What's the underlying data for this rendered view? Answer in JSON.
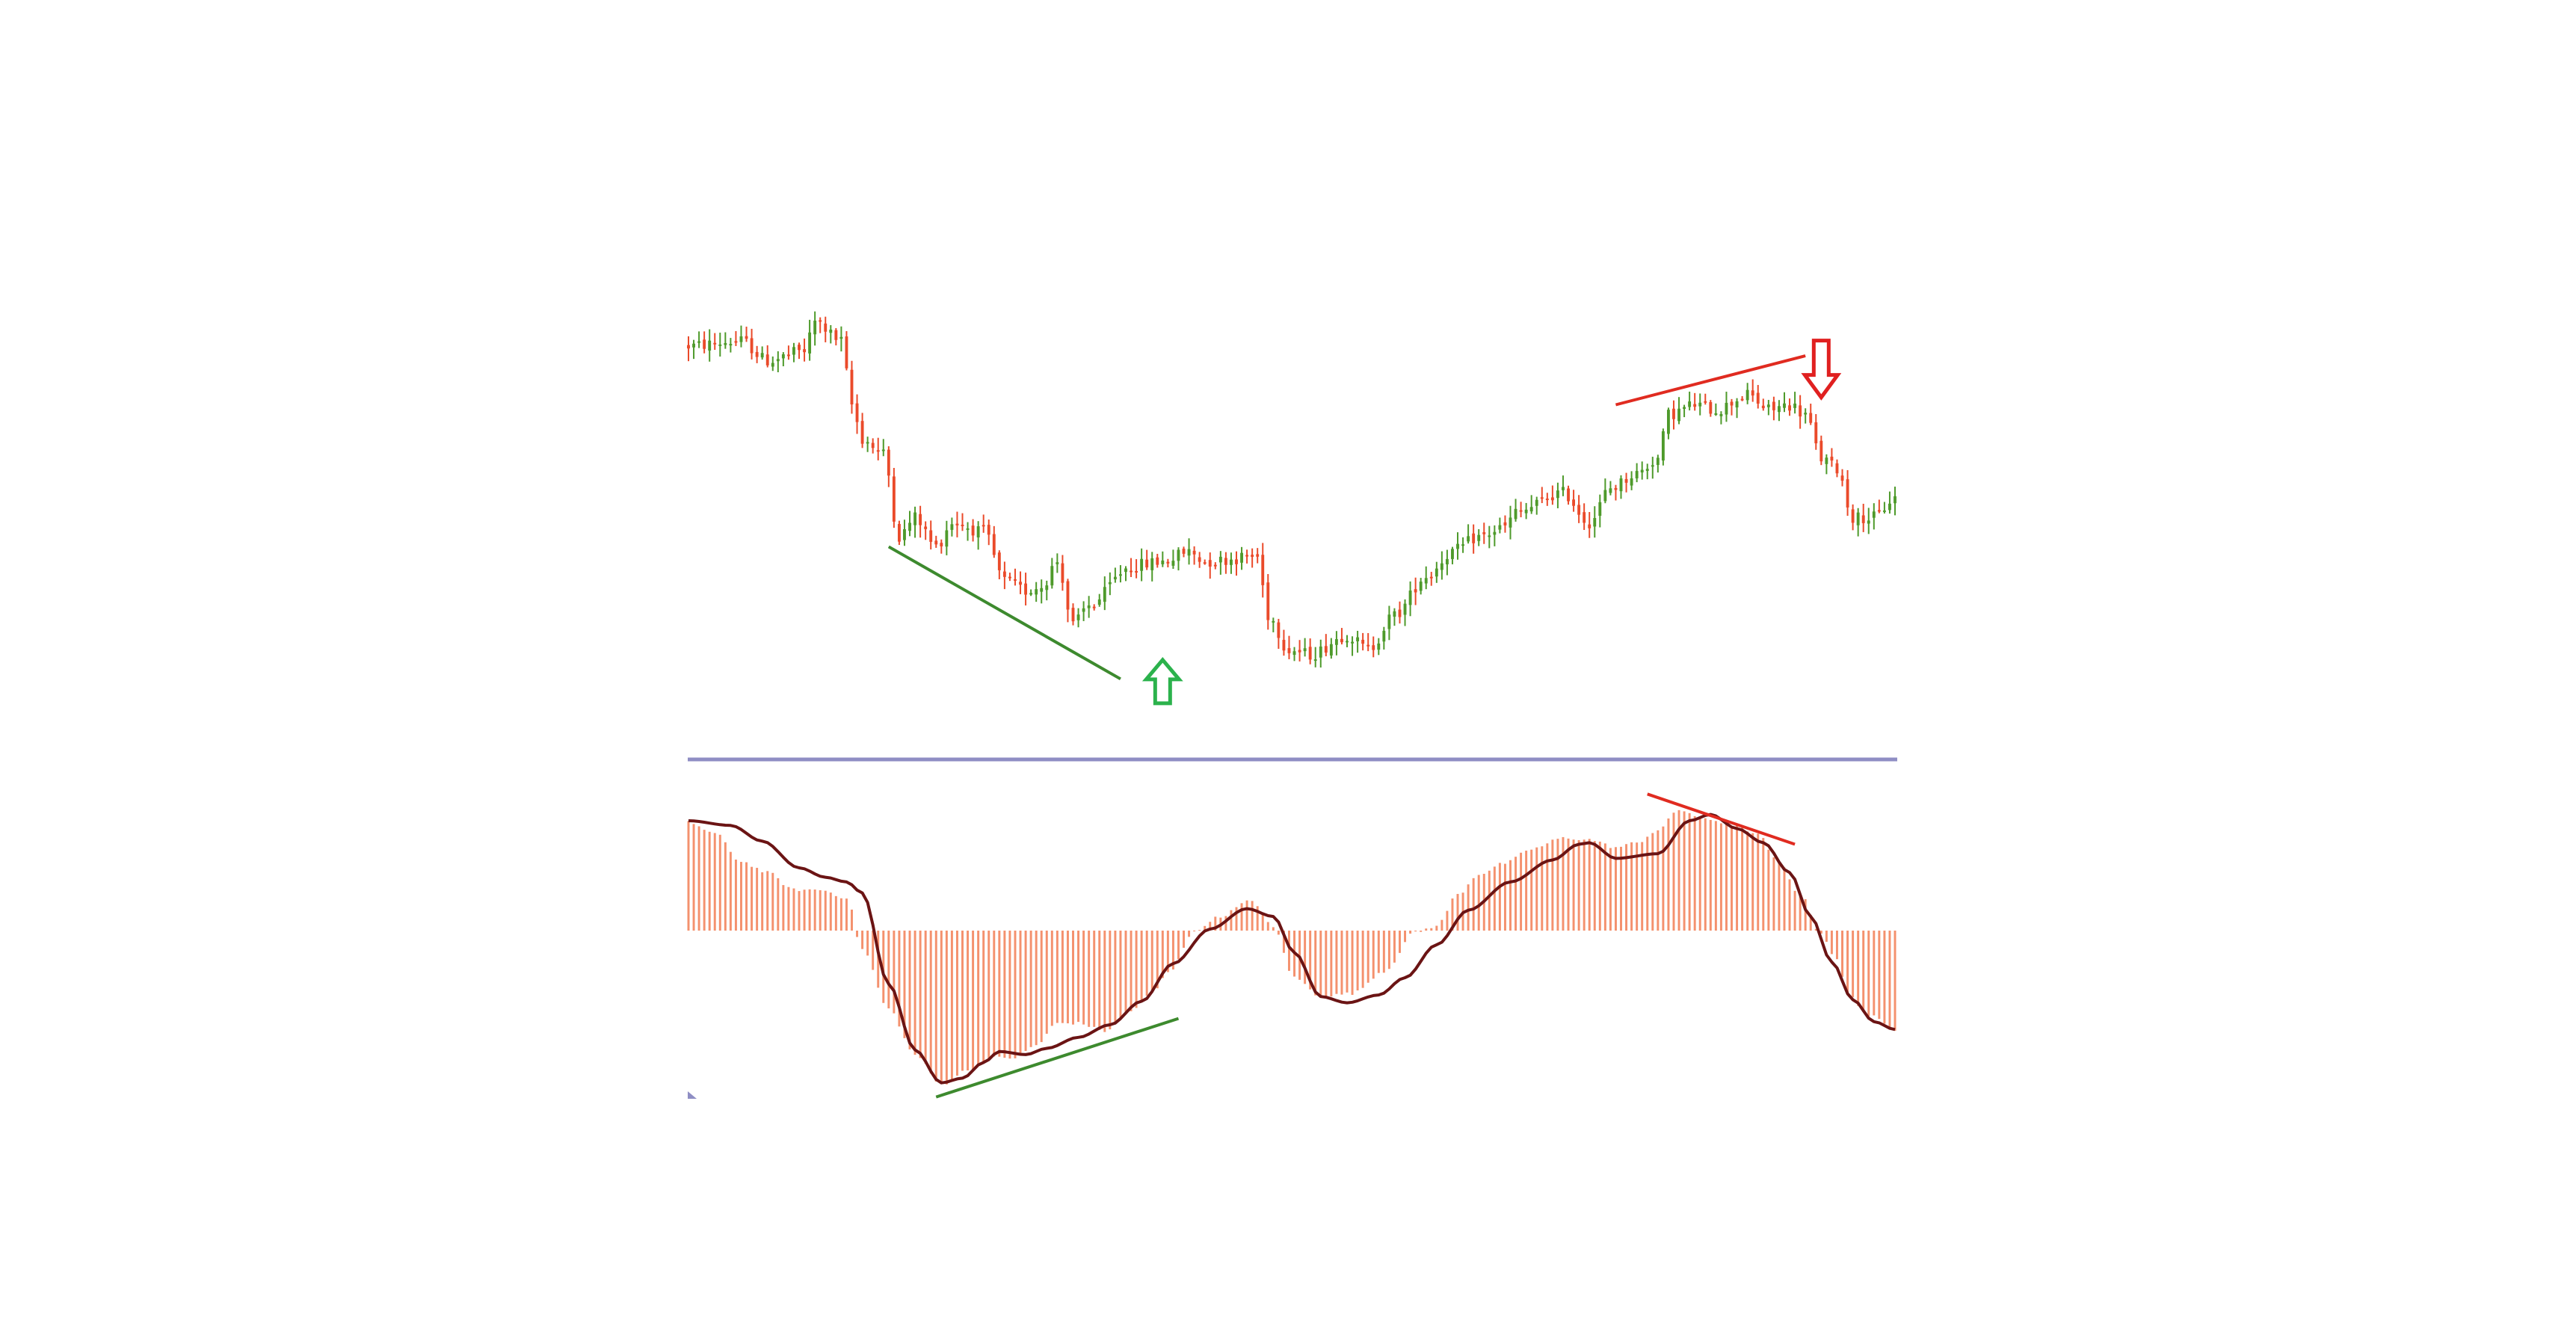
{
  "colors": {
    "background": "#ffffff",
    "bullish_candle": "#4e9a2b",
    "bearish_candle": "#ea4a2a",
    "histogram": "#f4916e",
    "signal_line": "#6b1414",
    "separator": "#8f8ec4",
    "bullish_divergence": "#3d8a2e",
    "bearish_divergence": "#e02b20",
    "buy_arrow": "#2bb24c",
    "sell_arrow": "#e02020"
  },
  "chart_data": [
    {
      "type": "candlestick",
      "x": [
        0,
        229
      ],
      "ylim": [
        0,
        100
      ],
      "anchors": [
        [
          0,
          82
        ],
        [
          10,
          83
        ],
        [
          15,
          79
        ],
        [
          22,
          81
        ],
        [
          24,
          87
        ],
        [
          29,
          83
        ],
        [
          31,
          70
        ],
        [
          33,
          63
        ],
        [
          37,
          60
        ],
        [
          40,
          43
        ],
        [
          43,
          47
        ],
        [
          47,
          41
        ],
        [
          50,
          46
        ],
        [
          56,
          44
        ],
        [
          60,
          34
        ],
        [
          64,
          32
        ],
        [
          67,
          33
        ],
        [
          70,
          38
        ],
        [
          73,
          25
        ],
        [
          76,
          29
        ],
        [
          84,
          37
        ],
        [
          90,
          38
        ],
        [
          95,
          40
        ],
        [
          98,
          38
        ],
        [
          108,
          39
        ],
        [
          110,
          27
        ],
        [
          114,
          20
        ],
        [
          118,
          19
        ],
        [
          125,
          23
        ],
        [
          129,
          20
        ],
        [
          134,
          27
        ],
        [
          140,
          35
        ],
        [
          145,
          40
        ],
        [
          150,
          43
        ],
        [
          155,
          45
        ],
        [
          157,
          48
        ],
        [
          166,
          52
        ],
        [
          171,
          46
        ],
        [
          175,
          53
        ],
        [
          180,
          56
        ],
        [
          184,
          59
        ],
        [
          186,
          68
        ],
        [
          191,
          70
        ],
        [
          195,
          69
        ],
        [
          201,
          72
        ],
        [
          205,
          69
        ],
        [
          209,
          70
        ],
        [
          212,
          68
        ],
        [
          215,
          59
        ],
        [
          218,
          57
        ],
        [
          221,
          47
        ],
        [
          225,
          47
        ],
        [
          229,
          51
        ]
      ],
      "divergence_line": [
        [
          38,
          41
        ],
        [
          82,
          14
        ]
      ],
      "divergence_line_2": [
        [
          176,
          70
        ],
        [
          212,
          80
        ]
      ],
      "buy_arrow_at": [
        90,
        13
      ],
      "sell_arrow_at": [
        215,
        77
      ]
    },
    {
      "type": "bar",
      "x": [
        0,
        229
      ],
      "ylim": [
        -100,
        100
      ],
      "histogram_anchors": [
        [
          0,
          69
        ],
        [
          5,
          62
        ],
        [
          10,
          44
        ],
        [
          15,
          37
        ],
        [
          20,
          26
        ],
        [
          25,
          26
        ],
        [
          30,
          21
        ],
        [
          33,
          -12
        ],
        [
          38,
          -50
        ],
        [
          43,
          -79
        ],
        [
          48,
          -98
        ],
        [
          53,
          -89
        ],
        [
          58,
          -81
        ],
        [
          62,
          -81
        ],
        [
          66,
          -73
        ],
        [
          70,
          -59
        ],
        [
          74,
          -59
        ],
        [
          79,
          -64
        ],
        [
          84,
          -51
        ],
        [
          88,
          -40
        ],
        [
          91,
          -27
        ],
        [
          96,
          -1
        ],
        [
          100,
          8
        ],
        [
          107,
          19
        ],
        [
          111,
          2
        ],
        [
          115,
          -30
        ],
        [
          120,
          -42
        ],
        [
          126,
          -40
        ],
        [
          132,
          -26
        ],
        [
          138,
          -1
        ],
        [
          142,
          3
        ],
        [
          146,
          23
        ],
        [
          150,
          36
        ],
        [
          155,
          43
        ],
        [
          160,
          52
        ],
        [
          166,
          59
        ],
        [
          171,
          58
        ],
        [
          176,
          53
        ],
        [
          180,
          56
        ],
        [
          184,
          64
        ],
        [
          188,
          77
        ],
        [
          193,
          71
        ],
        [
          199,
          67
        ],
        [
          203,
          61
        ],
        [
          207,
          43
        ],
        [
          211,
          23
        ],
        [
          215,
          -2
        ],
        [
          218,
          -19
        ],
        [
          220,
          -40
        ],
        [
          224,
          -54
        ],
        [
          229,
          -63
        ]
      ],
      "signal_anchors": [
        [
          0,
          70
        ],
        [
          8,
          67
        ],
        [
          14,
          57
        ],
        [
          21,
          40
        ],
        [
          26,
          34
        ],
        [
          30,
          31
        ],
        [
          33,
          24
        ],
        [
          38,
          -34
        ],
        [
          43,
          -76
        ],
        [
          48,
          -97
        ],
        [
          52,
          -94
        ],
        [
          56,
          -84
        ],
        [
          59,
          -77
        ],
        [
          64,
          -79
        ],
        [
          68,
          -75
        ],
        [
          74,
          -68
        ],
        [
          80,
          -60
        ],
        [
          86,
          -45
        ],
        [
          92,
          -21
        ],
        [
          99,
          1
        ],
        [
          106,
          14
        ],
        [
          111,
          9
        ],
        [
          115,
          -14
        ],
        [
          120,
          -42
        ],
        [
          125,
          -46
        ],
        [
          131,
          -41
        ],
        [
          136,
          -30
        ],
        [
          142,
          -9
        ],
        [
          148,
          13
        ],
        [
          156,
          31
        ],
        [
          164,
          45
        ],
        [
          169,
          55
        ],
        [
          171,
          56
        ],
        [
          176,
          46
        ],
        [
          184,
          49
        ],
        [
          190,
          70
        ],
        [
          194,
          74
        ],
        [
          199,
          65
        ],
        [
          204,
          56
        ],
        [
          209,
          37
        ],
        [
          213,
          9
        ],
        [
          217,
          -20
        ],
        [
          221,
          -44
        ],
        [
          225,
          -58
        ],
        [
          229,
          -63
        ]
      ],
      "divergence_line": [
        [
          47,
          -106
        ],
        [
          93,
          -56
        ]
      ],
      "divergence_line_2": [
        [
          182,
          87
        ],
        [
          210,
          55
        ]
      ]
    }
  ]
}
